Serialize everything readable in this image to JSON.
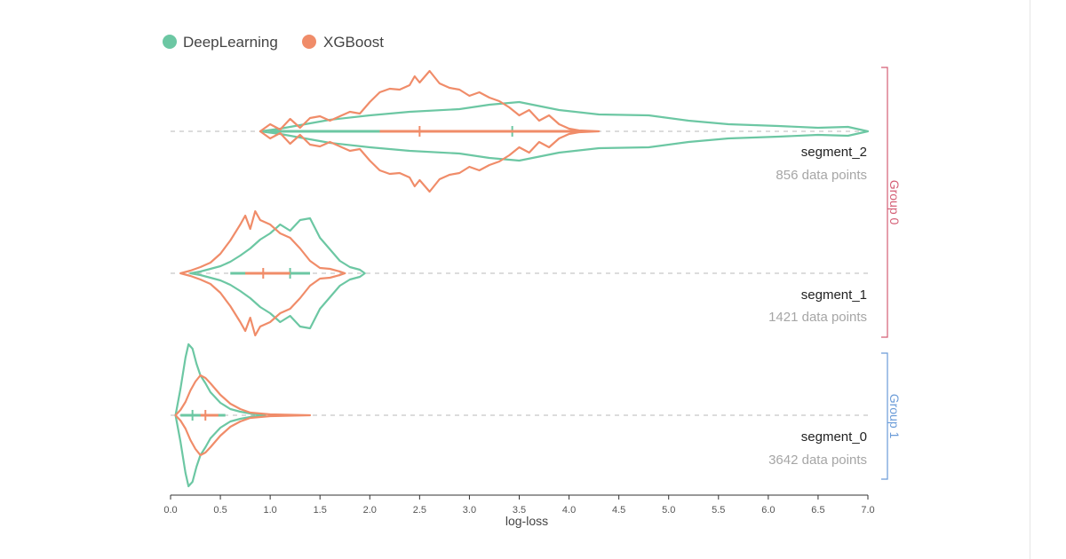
{
  "chart_data": {
    "type": "violin",
    "xlabel": "log-loss",
    "xlim": [
      0,
      7.0
    ],
    "ticks": [
      "0.0",
      "0.5",
      "1.0",
      "1.5",
      "2.0",
      "2.5",
      "3.0",
      "3.5",
      "4.0",
      "4.5",
      "5.0",
      "5.5",
      "6.0",
      "6.5",
      "7.0"
    ],
    "legend_position": "top-left",
    "series": [
      {
        "name": "DeepLearning",
        "color": "#6cc7a3"
      },
      {
        "name": "XGBoost",
        "color": "#f08c69"
      }
    ],
    "groups": [
      {
        "label": "Group 0",
        "color": "#d45d74",
        "segments": [
          "segment_2",
          "segment_1"
        ]
      },
      {
        "label": "Group 1",
        "color": "#6a9bd8",
        "segments": [
          "segment_0"
        ]
      }
    ],
    "segments": [
      {
        "name": "segment_2",
        "count_text": "856 data points",
        "violins": [
          {
            "series": "DeepLearning",
            "range": [
              0.9,
              7.0
            ],
            "median": 3.43,
            "whisker": [
              1.0,
              4.1
            ],
            "density": [
              [
                0.9,
                0
              ],
              [
                1.1,
                3
              ],
              [
                1.3,
                7
              ],
              [
                1.6,
                13
              ],
              [
                2.0,
                18
              ],
              [
                2.4,
                22
              ],
              [
                2.9,
                25
              ],
              [
                3.2,
                30
              ],
              [
                3.5,
                33
              ],
              [
                3.9,
                24
              ],
              [
                4.3,
                19
              ],
              [
                4.8,
                18
              ],
              [
                5.2,
                12
              ],
              [
                5.6,
                8
              ],
              [
                6.1,
                6
              ],
              [
                6.5,
                4
              ],
              [
                6.8,
                5
              ],
              [
                7.0,
                0
              ]
            ]
          },
          {
            "series": "XGBoost",
            "range": [
              0.9,
              4.3
            ],
            "median": 2.5,
            "whisker": [
              2.1,
              4.2
            ],
            "density": [
              [
                0.9,
                0
              ],
              [
                1.0,
                8
              ],
              [
                1.1,
                2
              ],
              [
                1.2,
                14
              ],
              [
                1.3,
                4
              ],
              [
                1.4,
                15
              ],
              [
                1.5,
                17
              ],
              [
                1.6,
                12
              ],
              [
                1.8,
                22
              ],
              [
                1.9,
                20
              ],
              [
                2.0,
                33
              ],
              [
                2.1,
                44
              ],
              [
                2.2,
                48
              ],
              [
                2.3,
                47
              ],
              [
                2.4,
                52
              ],
              [
                2.45,
                62
              ],
              [
                2.5,
                55
              ],
              [
                2.6,
                68
              ],
              [
                2.7,
                54
              ],
              [
                2.8,
                49
              ],
              [
                2.9,
                47
              ],
              [
                3.0,
                40
              ],
              [
                3.1,
                44
              ],
              [
                3.2,
                38
              ],
              [
                3.3,
                34
              ],
              [
                3.4,
                27
              ],
              [
                3.5,
                18
              ],
              [
                3.6,
                24
              ],
              [
                3.7,
                12
              ],
              [
                3.8,
                18
              ],
              [
                3.9,
                8
              ],
              [
                4.0,
                3
              ],
              [
                4.1,
                1
              ],
              [
                4.2,
                0.5
              ],
              [
                4.3,
                0
              ]
            ]
          }
        ]
      },
      {
        "name": "segment_1",
        "count_text": "1421 data points",
        "violins": [
          {
            "series": "DeepLearning",
            "range": [
              0.2,
              1.95
            ],
            "median": 1.2,
            "whisker": [
              0.6,
              1.4
            ],
            "density": [
              [
                0.2,
                0
              ],
              [
                0.3,
                2
              ],
              [
                0.4,
                5
              ],
              [
                0.5,
                8
              ],
              [
                0.6,
                13
              ],
              [
                0.7,
                20
              ],
              [
                0.8,
                28
              ],
              [
                0.9,
                38
              ],
              [
                1.0,
                45
              ],
              [
                1.1,
                55
              ],
              [
                1.2,
                48
              ],
              [
                1.3,
                60
              ],
              [
                1.4,
                62
              ],
              [
                1.5,
                40
              ],
              [
                1.6,
                27
              ],
              [
                1.7,
                14
              ],
              [
                1.8,
                7
              ],
              [
                1.9,
                4
              ],
              [
                1.95,
                0
              ]
            ]
          },
          {
            "series": "XGBoost",
            "range": [
              0.1,
              1.75
            ],
            "median": 0.93,
            "whisker": [
              0.75,
              1.2
            ],
            "density": [
              [
                0.1,
                0
              ],
              [
                0.2,
                3
              ],
              [
                0.3,
                7
              ],
              [
                0.4,
                12
              ],
              [
                0.5,
                22
              ],
              [
                0.6,
                37
              ],
              [
                0.7,
                55
              ],
              [
                0.75,
                65
              ],
              [
                0.8,
                50
              ],
              [
                0.85,
                70
              ],
              [
                0.9,
                60
              ],
              [
                1.0,
                55
              ],
              [
                1.1,
                45
              ],
              [
                1.2,
                40
              ],
              [
                1.3,
                28
              ],
              [
                1.4,
                14
              ],
              [
                1.5,
                6
              ],
              [
                1.6,
                5
              ],
              [
                1.7,
                2
              ],
              [
                1.75,
                0
              ]
            ]
          }
        ]
      },
      {
        "name": "segment_0",
        "count_text": "3642 data points",
        "violins": [
          {
            "series": "DeepLearning",
            "range": [
              0.05,
              0.95
            ],
            "median": 0.22,
            "whisker": [
              0.1,
              0.55
            ],
            "density": [
              [
                0.05,
                0
              ],
              [
                0.1,
                30
              ],
              [
                0.15,
                65
              ],
              [
                0.18,
                80
              ],
              [
                0.22,
                75
              ],
              [
                0.26,
                58
              ],
              [
                0.3,
                45
              ],
              [
                0.35,
                36
              ],
              [
                0.4,
                26
              ],
              [
                0.5,
                14
              ],
              [
                0.6,
                7
              ],
              [
                0.7,
                4
              ],
              [
                0.8,
                2
              ],
              [
                0.95,
                0
              ]
            ]
          },
          {
            "series": "XGBoost",
            "range": [
              0.05,
              1.4
            ],
            "median": 0.35,
            "whisker": [
              0.3,
              0.48
            ],
            "density": [
              [
                0.05,
                0
              ],
              [
                0.1,
                6
              ],
              [
                0.15,
                15
              ],
              [
                0.2,
                28
              ],
              [
                0.25,
                38
              ],
              [
                0.3,
                45
              ],
              [
                0.35,
                42
              ],
              [
                0.4,
                36
              ],
              [
                0.5,
                23
              ],
              [
                0.6,
                13
              ],
              [
                0.7,
                7
              ],
              [
                0.8,
                3
              ],
              [
                1.0,
                1
              ],
              [
                1.4,
                0
              ]
            ]
          }
        ]
      }
    ]
  }
}
